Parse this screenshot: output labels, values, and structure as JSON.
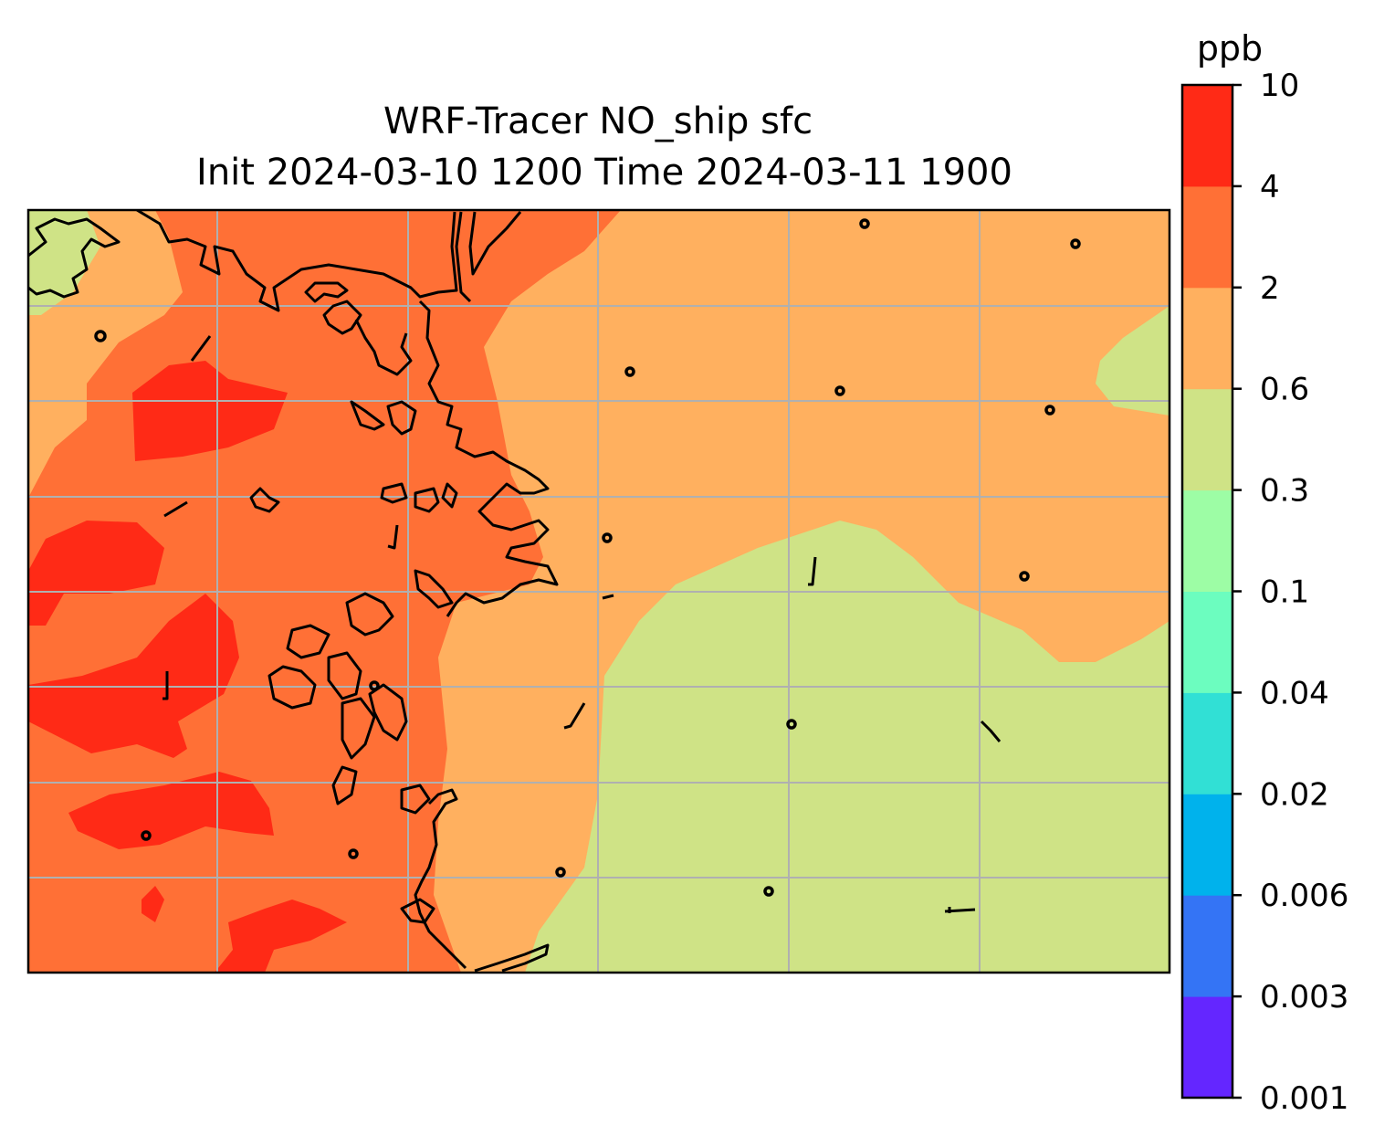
{
  "chart_data": {
    "type": "heatmap",
    "title": "WRF-Tracer NO_ship sfc",
    "subtitle": "Init 2024-03-10 1200 Time 2024-03-11 1900",
    "colorbar": {
      "label": "ppb",
      "levels": [
        "0.001",
        "0.003",
        "0.006",
        "0.02",
        "0.04",
        "0.1",
        "0.3",
        "0.6",
        "2",
        "4",
        "10"
      ],
      "colors": [
        "#6426ff",
        "#3474f5",
        "#00b2ec",
        "#31e0d5",
        "#6cfdbf",
        "#9dfda5",
        "#cfe386",
        "#ffb05f",
        "#ff7036",
        "#ff2a16"
      ]
    },
    "grid": true,
    "coastline": true,
    "regions": [
      {
        "level_range": "4-10",
        "color": "#ff2a16"
      },
      {
        "level_range": "2-4",
        "color": "#ff7036"
      },
      {
        "level_range": "0.6-2",
        "color": "#ffb05f"
      },
      {
        "level_range": "0.3-0.6",
        "color": "#cfe386"
      }
    ]
  }
}
